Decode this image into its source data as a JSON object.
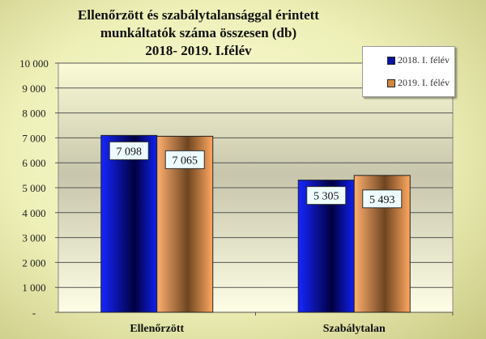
{
  "chart_data": {
    "type": "bar",
    "title": [
      "Ellenőrzött  és szabálytalansággal  érintett",
      "munkáltatók  száma összesen (db)",
      "2018- 2019. I.félév"
    ],
    "categories": [
      "Ellenőrzött",
      "Szabálytalan"
    ],
    "series": [
      {
        "name": "2018. I. félév",
        "values": [
          7098,
          5305
        ],
        "labels": [
          "7 098",
          "5 305"
        ],
        "color": "#0a14e6"
      },
      {
        "name": "2019. I. félév",
        "values": [
          7065,
          5493
        ],
        "labels": [
          "7 065",
          "5 493"
        ],
        "color": "#f7a35e"
      }
    ],
    "ylim": [
      0,
      10000
    ],
    "yticks": [
      0,
      1000,
      2000,
      3000,
      4000,
      5000,
      6000,
      7000,
      8000,
      9000,
      10000
    ],
    "ytick_labels": [
      "-",
      "1 000",
      "2 000",
      "3 000",
      "4 000",
      "5 000",
      "6 000",
      "7 000",
      "8 000",
      "9 000",
      "10 000"
    ],
    "grid": true,
    "legend": "top-right"
  }
}
